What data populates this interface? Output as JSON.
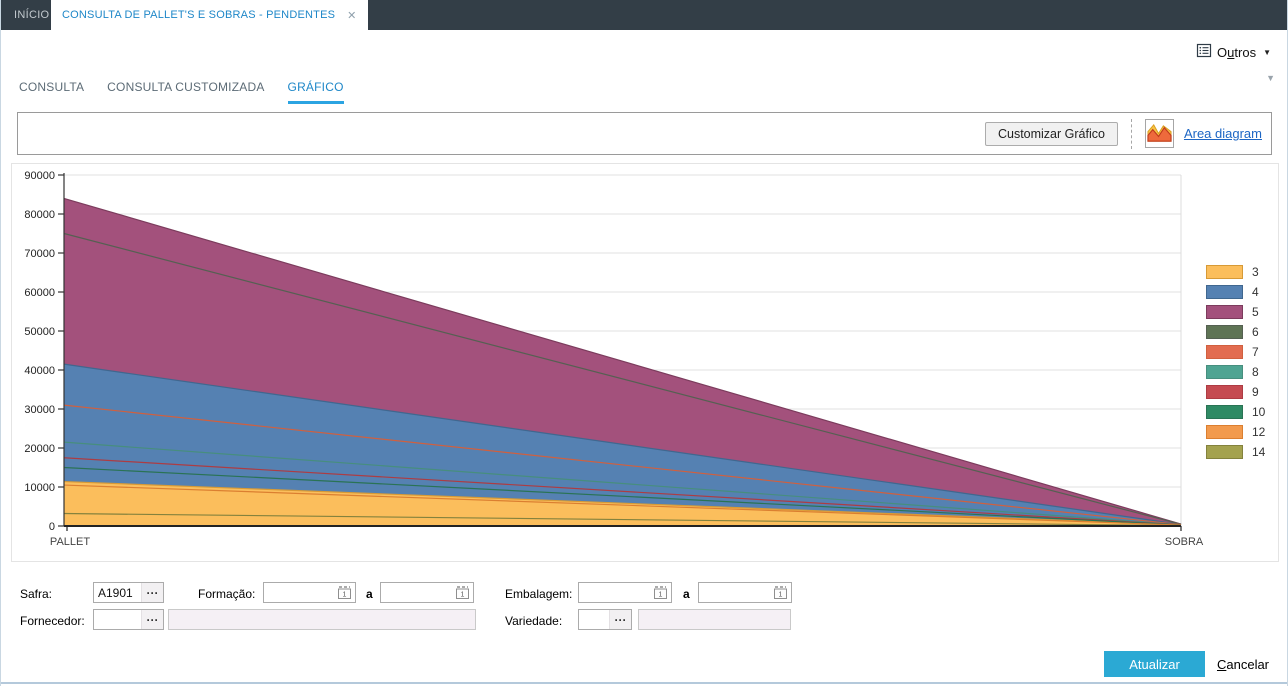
{
  "window_tabs": {
    "home": "INÍCIO",
    "active": "CONSULTA DE PALLET'S E SOBRAS - PENDENTES"
  },
  "menu": {
    "outros_pre": "O",
    "outros_accel": "u",
    "outros_post": "tros"
  },
  "tabstrip": {
    "tabs": [
      "CONSULTA",
      "CONSULTA CUSTOMIZADA",
      "GRÁFICO"
    ],
    "active": "GRÁFICO"
  },
  "toolbar": {
    "customize": "Customizar Gráfico",
    "diagram_type": "Area diagram"
  },
  "chart_data": {
    "type": "area",
    "categories": [
      "PALLET",
      "SOBRA"
    ],
    "series": [
      {
        "name": "3",
        "fill": "#FBBE5C",
        "stroke": "#D79A36",
        "values": [
          11400,
          300
        ],
        "area_visible": true
      },
      {
        "name": "4",
        "fill": "#5581B2",
        "stroke": "#40678F",
        "values": [
          41500,
          400
        ],
        "area_visible": true
      },
      {
        "name": "5",
        "fill": "#A3517C",
        "stroke": "#7C3C5D",
        "values": [
          84000,
          500
        ],
        "area_visible": true
      },
      {
        "name": "6",
        "fill": "#5F7455",
        "stroke": "#556052",
        "values": [
          75000,
          450
        ],
        "area_visible": false
      },
      {
        "name": "7",
        "fill": "#E26C50",
        "stroke": "#D0603F",
        "values": [
          31000,
          350
        ],
        "area_visible": false
      },
      {
        "name": "8",
        "fill": "#4FA492",
        "stroke": "#478E7E",
        "values": [
          21500,
          300
        ],
        "area_visible": false
      },
      {
        "name": "9",
        "fill": "#C54B51",
        "stroke": "#AD3C43",
        "values": [
          17500,
          280
        ],
        "area_visible": false
      },
      {
        "name": "10",
        "fill": "#2F8A64",
        "stroke": "#2A7354",
        "values": [
          15000,
          260
        ],
        "area_visible": false
      },
      {
        "name": "12",
        "fill": "#F29A4D",
        "stroke": "#DB7F30",
        "values": [
          10500,
          220
        ],
        "area_visible": false
      },
      {
        "name": "14",
        "fill": "#A4A24F",
        "stroke": "#84823D",
        "values": [
          3200,
          100
        ],
        "area_visible": false
      }
    ],
    "ylim": [
      0,
      90000
    ],
    "ytick_step": 10000,
    "xlabel": "",
    "ylabel": "",
    "grid": true,
    "legend_position": "right"
  },
  "filters": {
    "safra": {
      "label": "Safra:",
      "value": "A1901"
    },
    "formacao": {
      "label": "Formação:",
      "from": "",
      "separator": "a",
      "to": ""
    },
    "embalagem": {
      "label": "Embalagem:",
      "from": "",
      "separator": "a",
      "to": ""
    },
    "fornecedor": {
      "label": "Fornecedor:",
      "value": "",
      "description": ""
    },
    "variedade": {
      "label": "Variedade:",
      "value": "",
      "description": ""
    }
  },
  "actions": {
    "update": "Atualizar",
    "cancel_accel": "C",
    "cancel_post": "ancelar"
  },
  "icons": {
    "close": "✕",
    "caret": "▼",
    "ellipsis": "···"
  }
}
